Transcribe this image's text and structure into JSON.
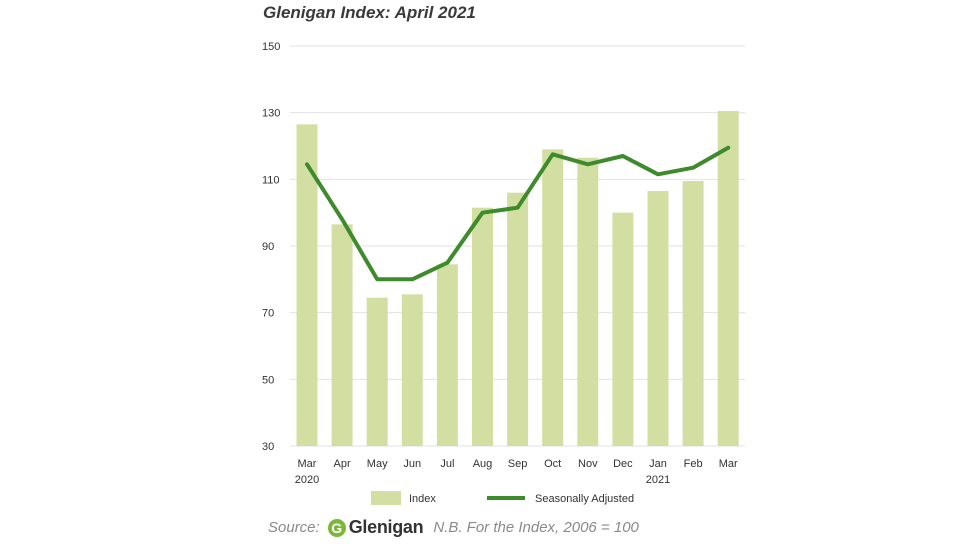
{
  "title": "Glenigan Index: April 2021",
  "footer": {
    "source_label": "Source:",
    "logo_letter": "G",
    "logo_text": "Glenigan",
    "note": "N.B. For the Index, 2006 = 100"
  },
  "colors": {
    "bar": "#d3dfa2",
    "line": "#3e8b2c",
    "grid": "#e2e2e2",
    "logo": "#7bb83a"
  },
  "chart_data": {
    "type": "bar",
    "title": "Glenigan Index: April 2021",
    "categories": [
      "Mar",
      "Apr",
      "May",
      "Jun",
      "Jul",
      "Aug",
      "Sep",
      "Oct",
      "Nov",
      "Dec",
      "Jan",
      "Feb",
      "Mar"
    ],
    "category_sublabels": [
      "2020",
      "",
      "",
      "",
      "",
      "",
      "",
      "",
      "",
      "",
      "2021",
      "",
      ""
    ],
    "ylim": [
      30,
      150
    ],
    "yticks": [
      30,
      50,
      70,
      90,
      110,
      130,
      150
    ],
    "grid": true,
    "legend_position": "bottom",
    "series": [
      {
        "name": "Index",
        "type": "bar",
        "values": [
          126.5,
          96.5,
          74.5,
          75.5,
          84.5,
          101.5,
          106,
          119,
          116.5,
          100,
          106.5,
          109.5,
          130.5
        ]
      },
      {
        "name": "Seasonally Adjusted",
        "type": "line",
        "values": [
          114.5,
          98,
          80,
          80,
          85,
          100,
          101.5,
          117.5,
          114.5,
          117,
          111.5,
          113.5,
          119.5
        ]
      }
    ]
  }
}
